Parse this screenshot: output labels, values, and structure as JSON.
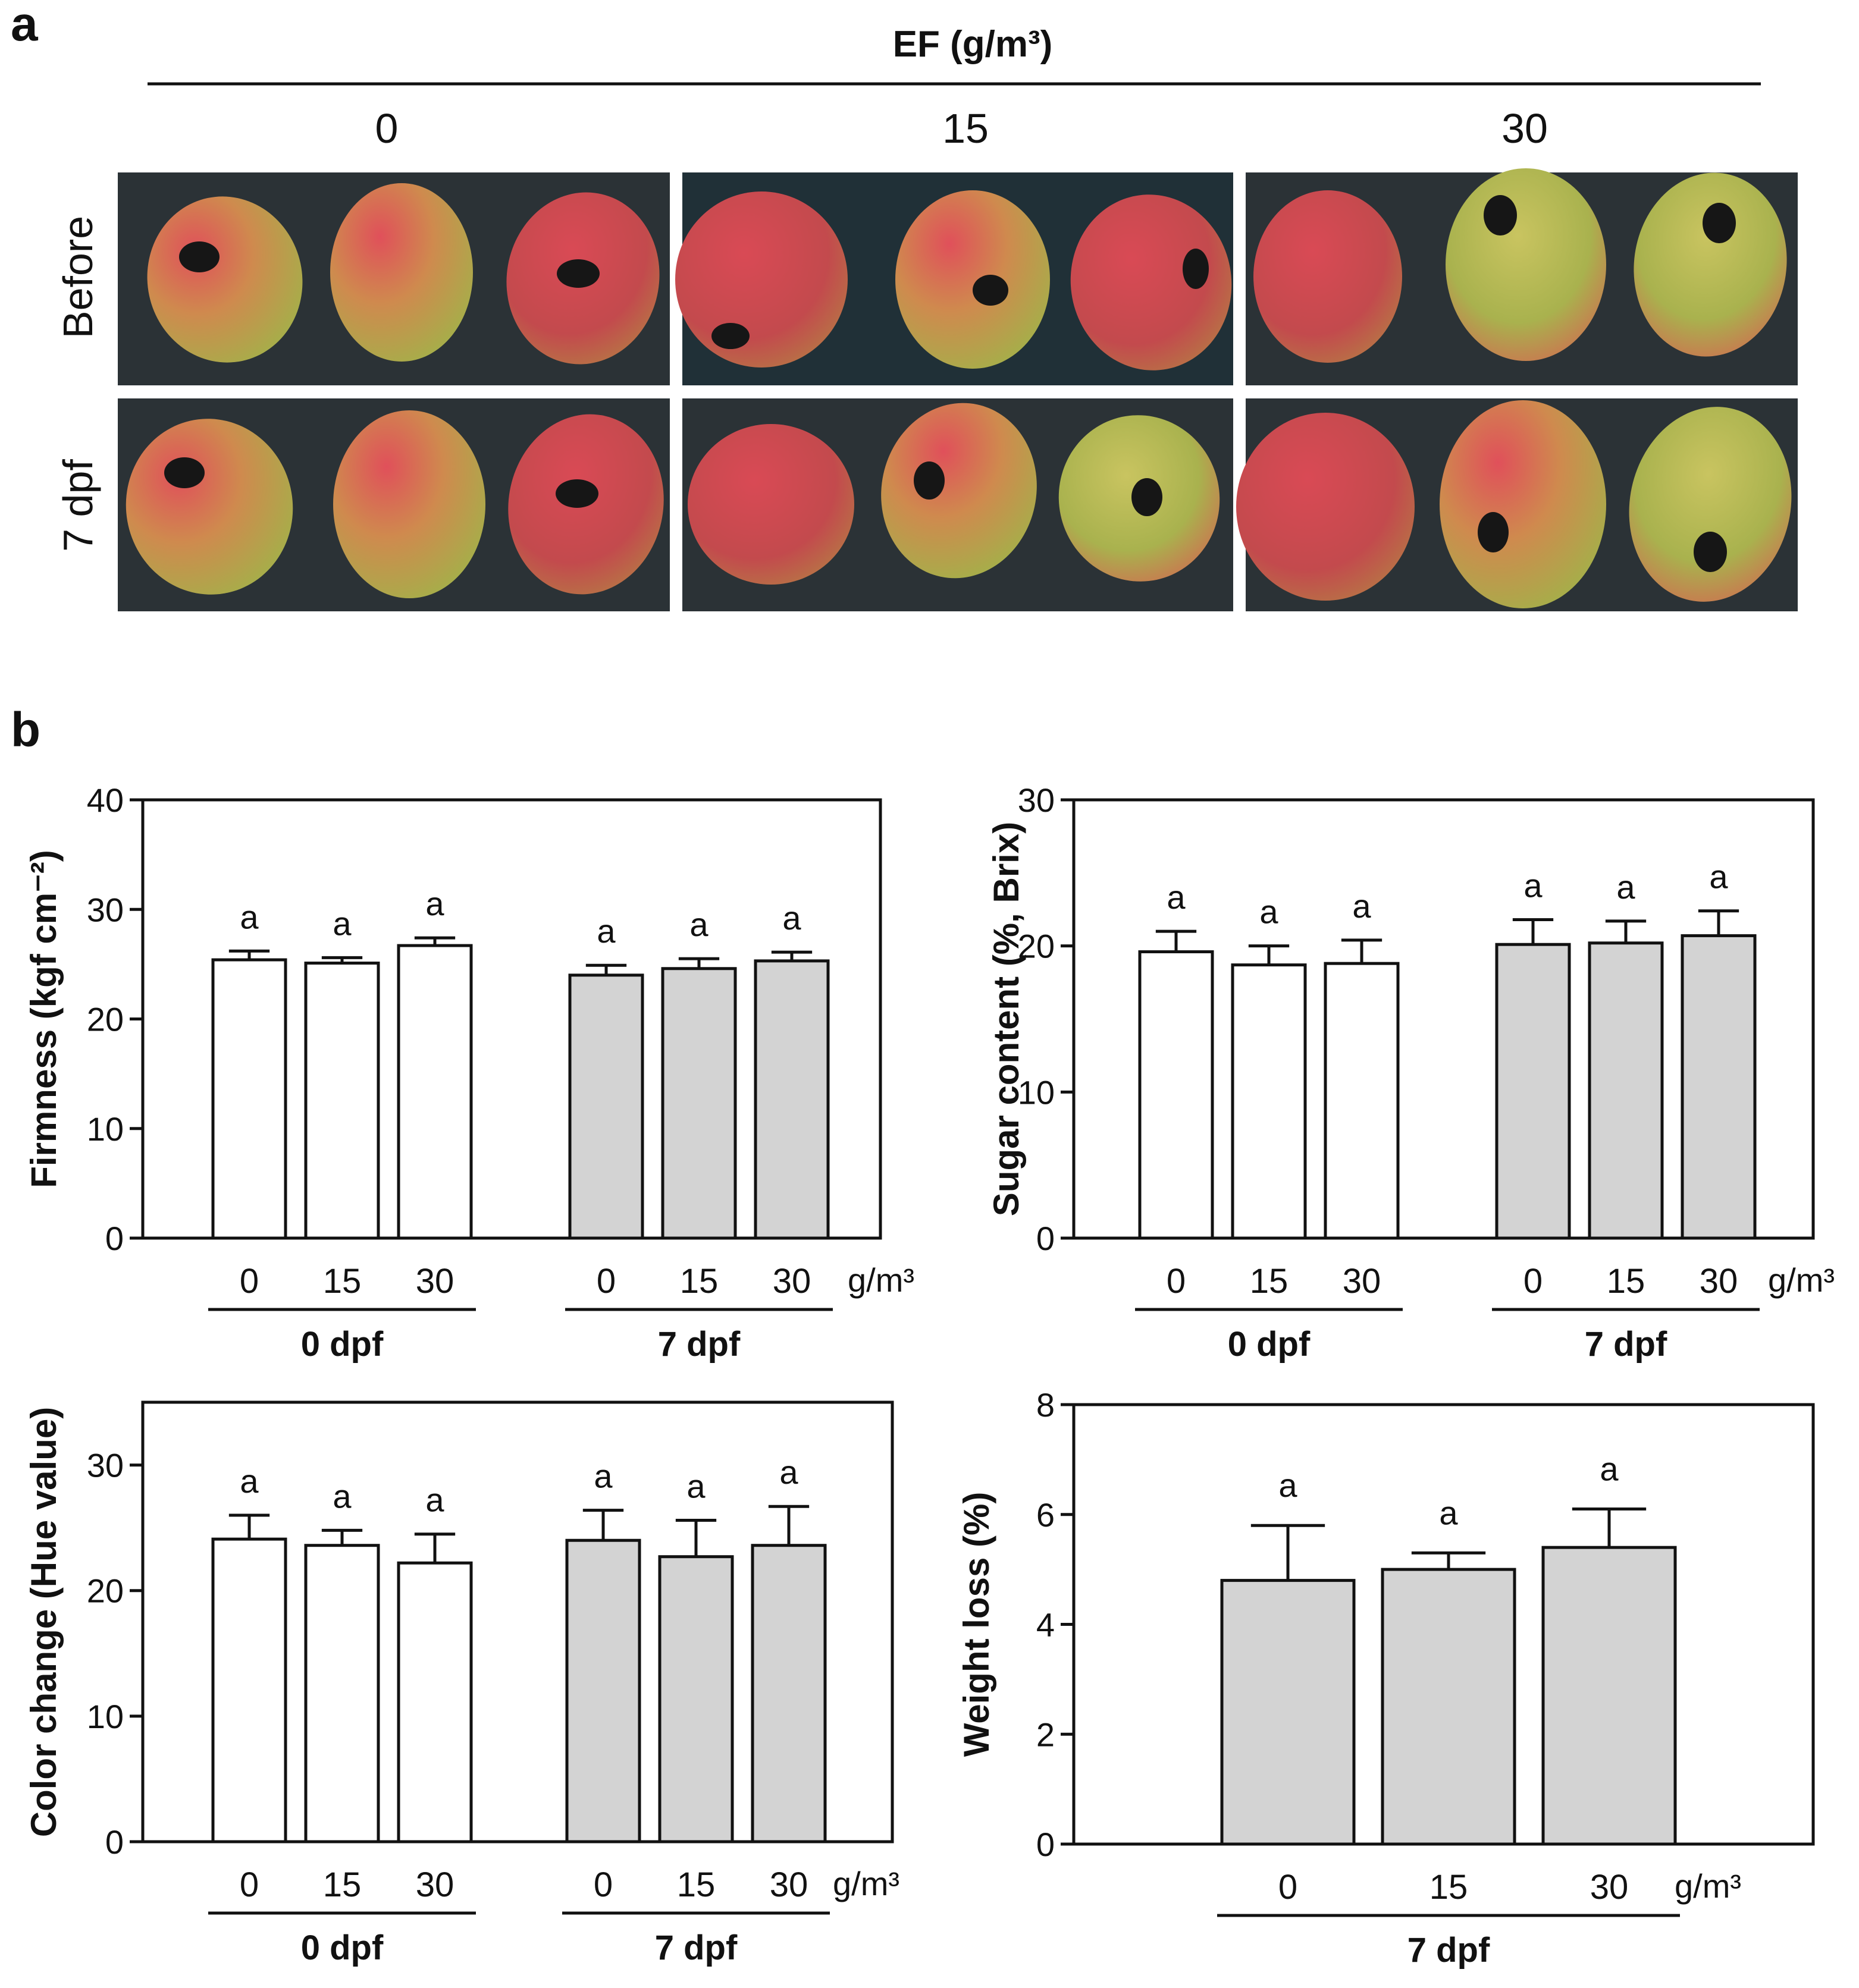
{
  "panel_a": {
    "label": "a",
    "header": "EF (g/m³)",
    "doses": [
      "0",
      "15",
      "30"
    ],
    "rows": [
      "Before",
      "7 dpf"
    ]
  },
  "panel_b": {
    "label": "b"
  },
  "chart_data": [
    {
      "type": "bar",
      "ylabel": "Firmness (kgf cm⁻²)",
      "ylim": [
        0,
        40
      ],
      "yticks": [
        0,
        10,
        20,
        30,
        40
      ],
      "unit": "g/m³",
      "groups": [
        {
          "name": "0 dpf",
          "fill": "#ffffff",
          "categories": [
            "0",
            "15",
            "30"
          ],
          "values": [
            25.4,
            25.1,
            26.7
          ],
          "errors": [
            0.8,
            0.5,
            0.7
          ],
          "letters": [
            "a",
            "a",
            "a"
          ]
        },
        {
          "name": "7 dpf",
          "fill": "#d3d3d3",
          "categories": [
            "0",
            "15",
            "30"
          ],
          "values": [
            24.0,
            24.6,
            25.3
          ],
          "errors": [
            0.9,
            0.9,
            0.8
          ],
          "letters": [
            "a",
            "a",
            "a"
          ]
        }
      ]
    },
    {
      "type": "bar",
      "ylabel": "Sugar content (%, Brix)",
      "ylim": [
        0,
        30
      ],
      "yticks": [
        0,
        10,
        20,
        30
      ],
      "unit": "g/m³",
      "groups": [
        {
          "name": "0 dpf",
          "fill": "#ffffff",
          "categories": [
            "0",
            "15",
            "30"
          ],
          "values": [
            19.6,
            18.7,
            18.8
          ],
          "errors": [
            1.4,
            1.3,
            1.6
          ],
          "letters": [
            "a",
            "a",
            "a"
          ]
        },
        {
          "name": "7 dpf",
          "fill": "#d3d3d3",
          "categories": [
            "0",
            "15",
            "30"
          ],
          "values": [
            20.1,
            20.2,
            20.7
          ],
          "errors": [
            1.7,
            1.5,
            1.7
          ],
          "letters": [
            "a",
            "a",
            "a"
          ]
        }
      ]
    },
    {
      "type": "bar",
      "ylabel": "Color change (Hue value)",
      "ylim": [
        0,
        35
      ],
      "yticks": [
        0,
        10,
        20,
        30
      ],
      "unit": "g/m³",
      "groups": [
        {
          "name": "0 dpf",
          "fill": "#ffffff",
          "categories": [
            "0",
            "15",
            "30"
          ],
          "values": [
            24.1,
            23.6,
            22.2
          ],
          "errors": [
            1.9,
            1.2,
            2.3
          ],
          "letters": [
            "a",
            "a",
            "a"
          ]
        },
        {
          "name": "7 dpf",
          "fill": "#d3d3d3",
          "categories": [
            "0",
            "15",
            "30"
          ],
          "values": [
            24.0,
            22.7,
            23.6
          ],
          "errors": [
            2.4,
            2.9,
            3.1
          ],
          "letters": [
            "a",
            "a",
            "a"
          ]
        }
      ]
    },
    {
      "type": "bar",
      "ylabel": "Weight loss (%)",
      "ylim": [
        0,
        8
      ],
      "yticks": [
        0,
        2,
        4,
        6,
        8
      ],
      "unit": "g/m³",
      "groups": [
        {
          "name": "7 dpf",
          "fill": "#d3d3d3",
          "categories": [
            "0",
            "15",
            "30"
          ],
          "values": [
            4.8,
            5.0,
            5.4
          ],
          "errors": [
            1.0,
            0.3,
            0.7
          ],
          "letters": [
            "a",
            "a",
            "a"
          ]
        }
      ]
    }
  ]
}
